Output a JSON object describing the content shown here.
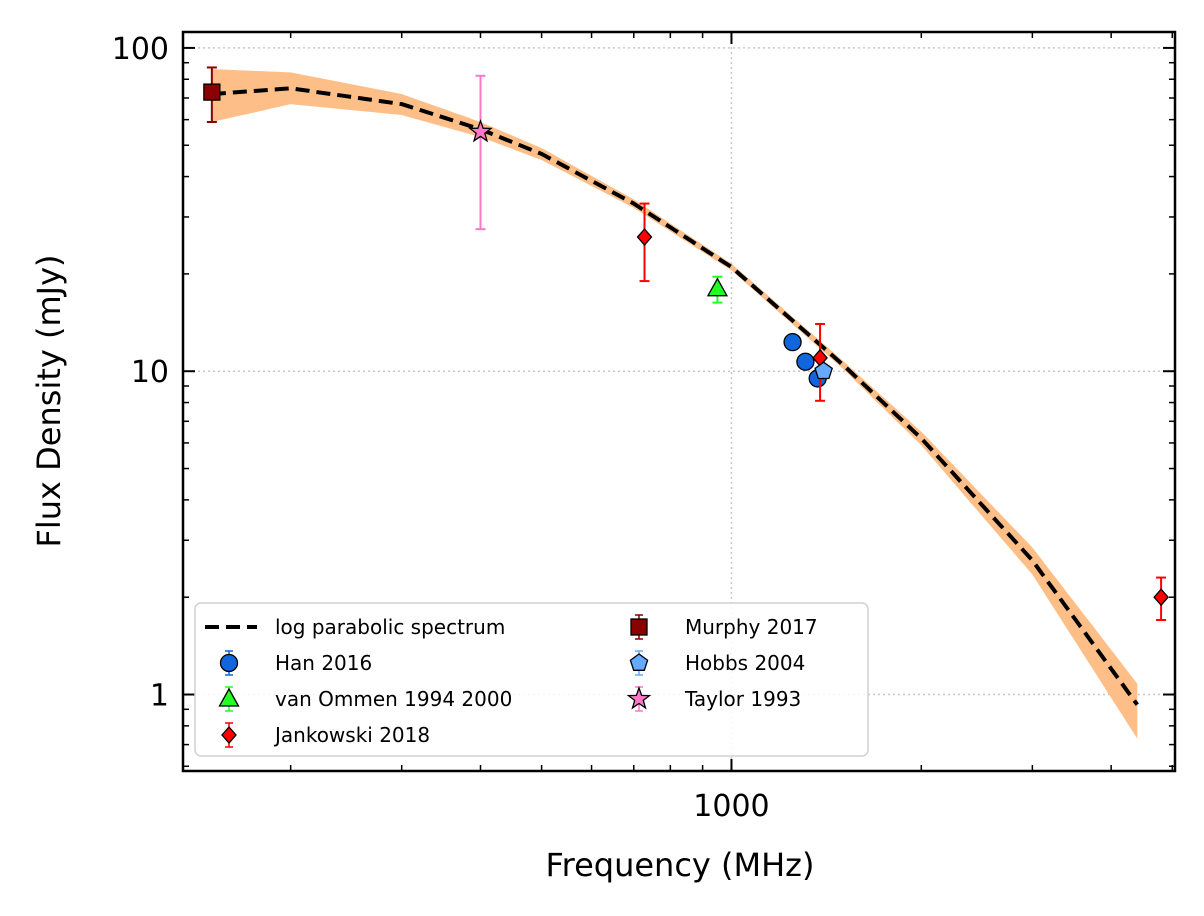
{
  "chart_data": {
    "type": "scatter",
    "xlabel": "Frequency (MHz)",
    "ylabel": "Flux Density (mJy)",
    "x_scale": "log",
    "y_scale": "log",
    "xlim": [
      135,
      5050
    ],
    "ylim": [
      0.58,
      112
    ],
    "x_major_ticks": [
      {
        "value": 1000,
        "label": "1000"
      }
    ],
    "y_major_ticks": [
      {
        "value": 1,
        "label": "1"
      },
      {
        "value": 10,
        "label": "10"
      },
      {
        "value": 100,
        "label": "100"
      }
    ],
    "grid": true,
    "legend_position": "lower-left",
    "model": {
      "name": "log parabolic spectrum",
      "style": "dashed",
      "color": "#000000",
      "band_color": "#fdbf87",
      "x_range": [
        150,
        4400
      ],
      "curve": [
        {
          "x": 150,
          "y": 72
        },
        {
          "x": 200,
          "y": 75
        },
        {
          "x": 300,
          "y": 67
        },
        {
          "x": 400,
          "y": 56
        },
        {
          "x": 500,
          "y": 47
        },
        {
          "x": 700,
          "y": 33
        },
        {
          "x": 1000,
          "y": 21
        },
        {
          "x": 1500,
          "y": 10.5
        },
        {
          "x": 2000,
          "y": 6.2
        },
        {
          "x": 3000,
          "y": 2.6
        },
        {
          "x": 4400,
          "y": 0.93
        }
      ],
      "band_half_width": [
        {
          "x": 150,
          "y_low": 59,
          "y_high": 86
        },
        {
          "x": 200,
          "y_low": 67,
          "y_high": 84
        },
        {
          "x": 300,
          "y_low": 62,
          "y_high": 72
        },
        {
          "x": 400,
          "y_low": 53,
          "y_high": 59
        },
        {
          "x": 500,
          "y_low": 45,
          "y_high": 49
        },
        {
          "x": 700,
          "y_low": 32,
          "y_high": 34
        },
        {
          "x": 1000,
          "y_low": 20.5,
          "y_high": 21.5
        },
        {
          "x": 1500,
          "y_low": 10.2,
          "y_high": 10.8
        },
        {
          "x": 2000,
          "y_low": 5.9,
          "y_high": 6.5
        },
        {
          "x": 3000,
          "y_low": 2.35,
          "y_high": 2.85
        },
        {
          "x": 4400,
          "y_low": 0.73,
          "y_high": 1.08
        }
      ]
    },
    "series": [
      {
        "name": "Han 2016",
        "marker": "circle",
        "color": "#1166dd",
        "points": [
          {
            "x": 1250,
            "y": 12.3,
            "err_low": 12.3,
            "err_high": 12.3
          },
          {
            "x": 1310,
            "y": 10.7,
            "err_low": 10.7,
            "err_high": 10.7
          },
          {
            "x": 1370,
            "y": 9.5,
            "err_low": 9.5,
            "err_high": 9.5
          }
        ]
      },
      {
        "name": "van Ommen 1994 2000",
        "marker": "triangle",
        "color": "#22ff22",
        "points": [
          {
            "x": 950,
            "y": 18,
            "err_low": 16.3,
            "err_high": 19.6
          }
        ]
      },
      {
        "name": "Jankowski 2018",
        "marker": "diamond",
        "color": "#ff0000",
        "points": [
          {
            "x": 728,
            "y": 26,
            "err_low": 19,
            "err_high": 33
          },
          {
            "x": 1382,
            "y": 11,
            "err_low": 8.1,
            "err_high": 14
          },
          {
            "x": 4800,
            "y": 2,
            "err_low": 1.7,
            "err_high": 2.3
          }
        ]
      },
      {
        "name": "Murphy 2017",
        "marker": "square",
        "color": "#8b0000",
        "points": [
          {
            "x": 150,
            "y": 73,
            "err_low": 59,
            "err_high": 87
          }
        ]
      },
      {
        "name": "Hobbs 2004",
        "marker": "pentagon",
        "color": "#66aaff",
        "points": [
          {
            "x": 1400,
            "y": 10,
            "err_low": 10,
            "err_high": 10
          }
        ]
      },
      {
        "name": "Taylor 1993",
        "marker": "star",
        "color": "#ff77c6",
        "points": [
          {
            "x": 400,
            "y": 55,
            "err_low": 27.5,
            "err_high": 82
          }
        ]
      }
    ]
  }
}
